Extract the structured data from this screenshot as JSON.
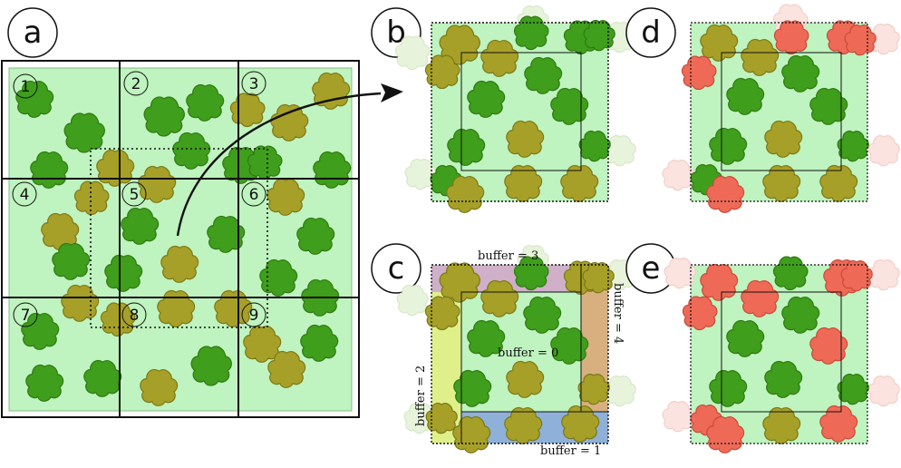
{
  "panels": {
    "a": {
      "letter": "a",
      "cells": [
        "1",
        "2",
        "3",
        "4",
        "5",
        "6",
        "7",
        "8",
        "9"
      ]
    },
    "b": {
      "letter": "b"
    },
    "c": {
      "letter": "c",
      "buffers": {
        "top": "buffer = 3",
        "right": "buffer = 4",
        "left": "buffer = 2",
        "bottom": "buffer = 1",
        "center": "buffer = 0"
      }
    },
    "d": {
      "letter": "d"
    },
    "e": {
      "letter": "e"
    }
  },
  "colors": {
    "tile_fill": "#bff3bf",
    "tile_stroke": "#8ab88a",
    "tree_dark": "#3f9e1c",
    "tree_dark_edge": "#2e7a10",
    "tree_olive": "#a7a028",
    "tree_olive_edge": "#7b7815",
    "tree_red": "#ee6a57",
    "tree_faded": "#e8f3dc",
    "tree_faded_red": "#fbe3df",
    "buffer_top": "#cfb0c8",
    "buffer_right": "#d8b080",
    "buffer_left": "#dff08a",
    "buffer_bottom": "#8fb0d8"
  }
}
